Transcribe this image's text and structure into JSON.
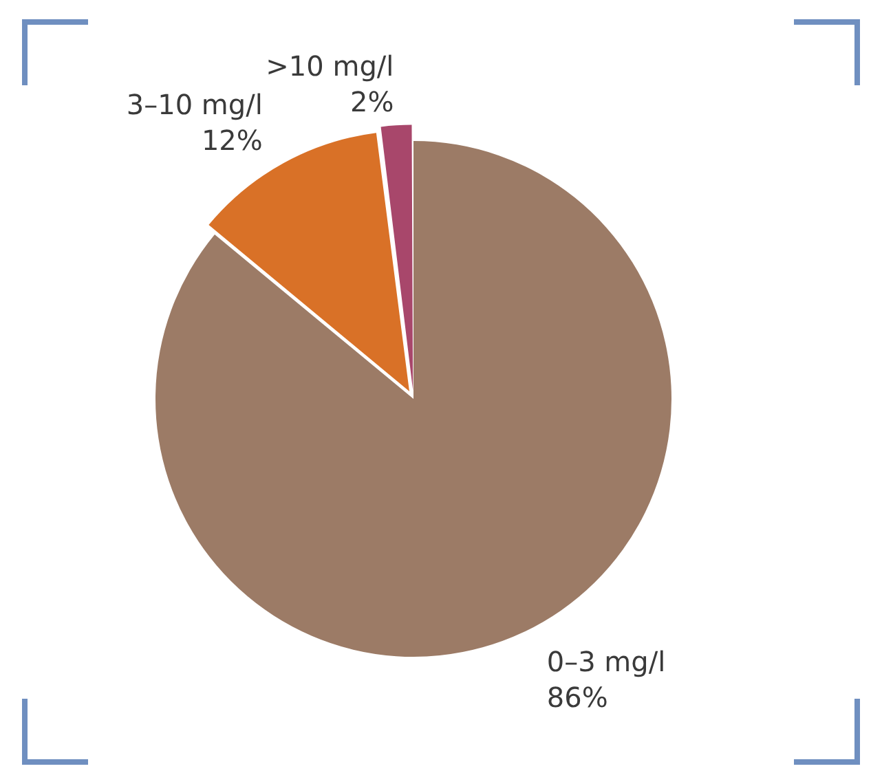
{
  "chart_data": {
    "type": "pie",
    "categories": [
      "0–3 mg/l",
      "3–10 mg/l",
      ">10 mg/l"
    ],
    "values": [
      86,
      12,
      2
    ],
    "colors": [
      "#9c7b66",
      "#d97127",
      "#a8476b"
    ],
    "value_labels": [
      "86%",
      "12%",
      "2%"
    ],
    "legend": false
  }
}
